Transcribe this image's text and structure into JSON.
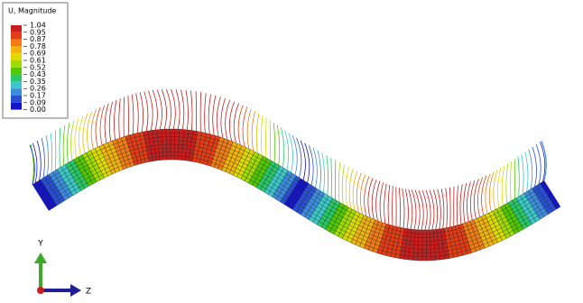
{
  "legend": {
    "title": "U, Magnitude",
    "labels": [
      "1.04",
      "0.95",
      "0.87",
      "0.78",
      "0.69",
      "0.61",
      "0.52",
      "0.43",
      "0.35",
      "0.26",
      "0.17",
      "0.09",
      "0.00"
    ],
    "colors": [
      "#c81e1e",
      "#e43c14",
      "#f07d14",
      "#f0b40a",
      "#dcdc00",
      "#a0dc00",
      "#50c800",
      "#28c864",
      "#3cc8c8",
      "#3c8cdc",
      "#2850d2",
      "#1414c8"
    ]
  },
  "triad": {
    "y_label": "Y",
    "z_label": "Z"
  }
}
